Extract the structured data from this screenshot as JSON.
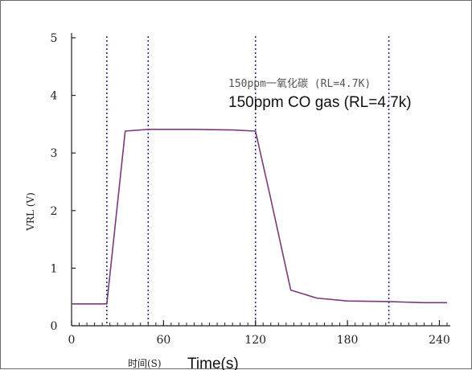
{
  "chart_data": {
    "type": "line",
    "ylabel": "VRL (V)",
    "xlabel_cn": "时间(S)",
    "xlabel_en": "Time(s)",
    "annotation_cn": "150ppm一氧化碳 (RL=4.7K)",
    "annotation_en": "150ppm CO gas (RL=4.7k)",
    "xlim": [
      0,
      245
    ],
    "ylim": [
      0,
      5
    ],
    "x_ticks": [
      0,
      60,
      120,
      180,
      240
    ],
    "x_tick_labels": [
      "0",
      "60",
      "120",
      "180",
      "240"
    ],
    "y_ticks": [
      0,
      1,
      2,
      3,
      4,
      5
    ],
    "y_tick_labels": [
      "0",
      "1",
      "2",
      "3",
      "4",
      "5"
    ],
    "vertical_reference_lines": [
      23,
      50,
      120,
      207
    ],
    "series": [
      {
        "color": "#7a3a7a",
        "x": [
          0,
          23,
          35,
          50,
          80,
          105,
          120,
          130,
          143,
          160,
          180,
          207,
          230,
          245
        ],
        "y": [
          0.38,
          0.38,
          3.38,
          3.41,
          3.41,
          3.4,
          3.38,
          2.2,
          0.62,
          0.48,
          0.43,
          0.42,
          0.4,
          0.4
        ]
      }
    ]
  }
}
